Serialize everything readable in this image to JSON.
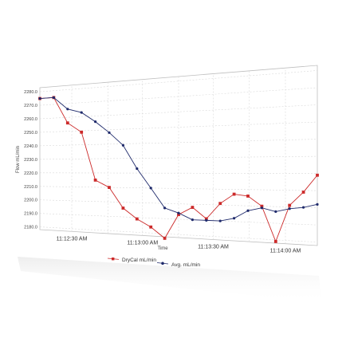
{
  "chart_data": {
    "type": "line",
    "xlabel": "Time",
    "ylabel": "Flow mL/min",
    "y_ticks": [
      "2180.0",
      "2190.0",
      "2200.0",
      "2210.0",
      "2220.0",
      "2230.0",
      "2240.0",
      "2250.0",
      "2260.0",
      "2270.0",
      "2280.0"
    ],
    "ylim": [
      2178,
      2283
    ],
    "x_ticks": [
      "11:12:30 AM",
      "11:13:00 AM",
      "11:13:30 AM",
      "11:14:00 AM"
    ],
    "grid": true,
    "legend_position": "bottom",
    "series": [
      {
        "name": "DryCal mL/min",
        "color": "#cc2a2a",
        "marker": "square",
        "values": [
          2275,
          2275,
          2256,
          2249,
          2215,
          2210,
          2196,
          2189,
          2184,
          2177,
          2193,
          2198,
          2191,
          2201,
          2207,
          2206,
          2200,
          2179,
          2201,
          2209,
          2219
        ]
      },
      {
        "name": "Avg. mL/min",
        "color": "#1f2a6b",
        "marker": "circle",
        "values": [
          2275,
          2275,
          2266,
          2263,
          2256,
          2248,
          2239,
          2223,
          2210,
          2197,
          2194,
          2190,
          2190,
          2190,
          2192,
          2197,
          2199,
          2197,
          2199,
          2200,
          2202
        ]
      }
    ]
  }
}
